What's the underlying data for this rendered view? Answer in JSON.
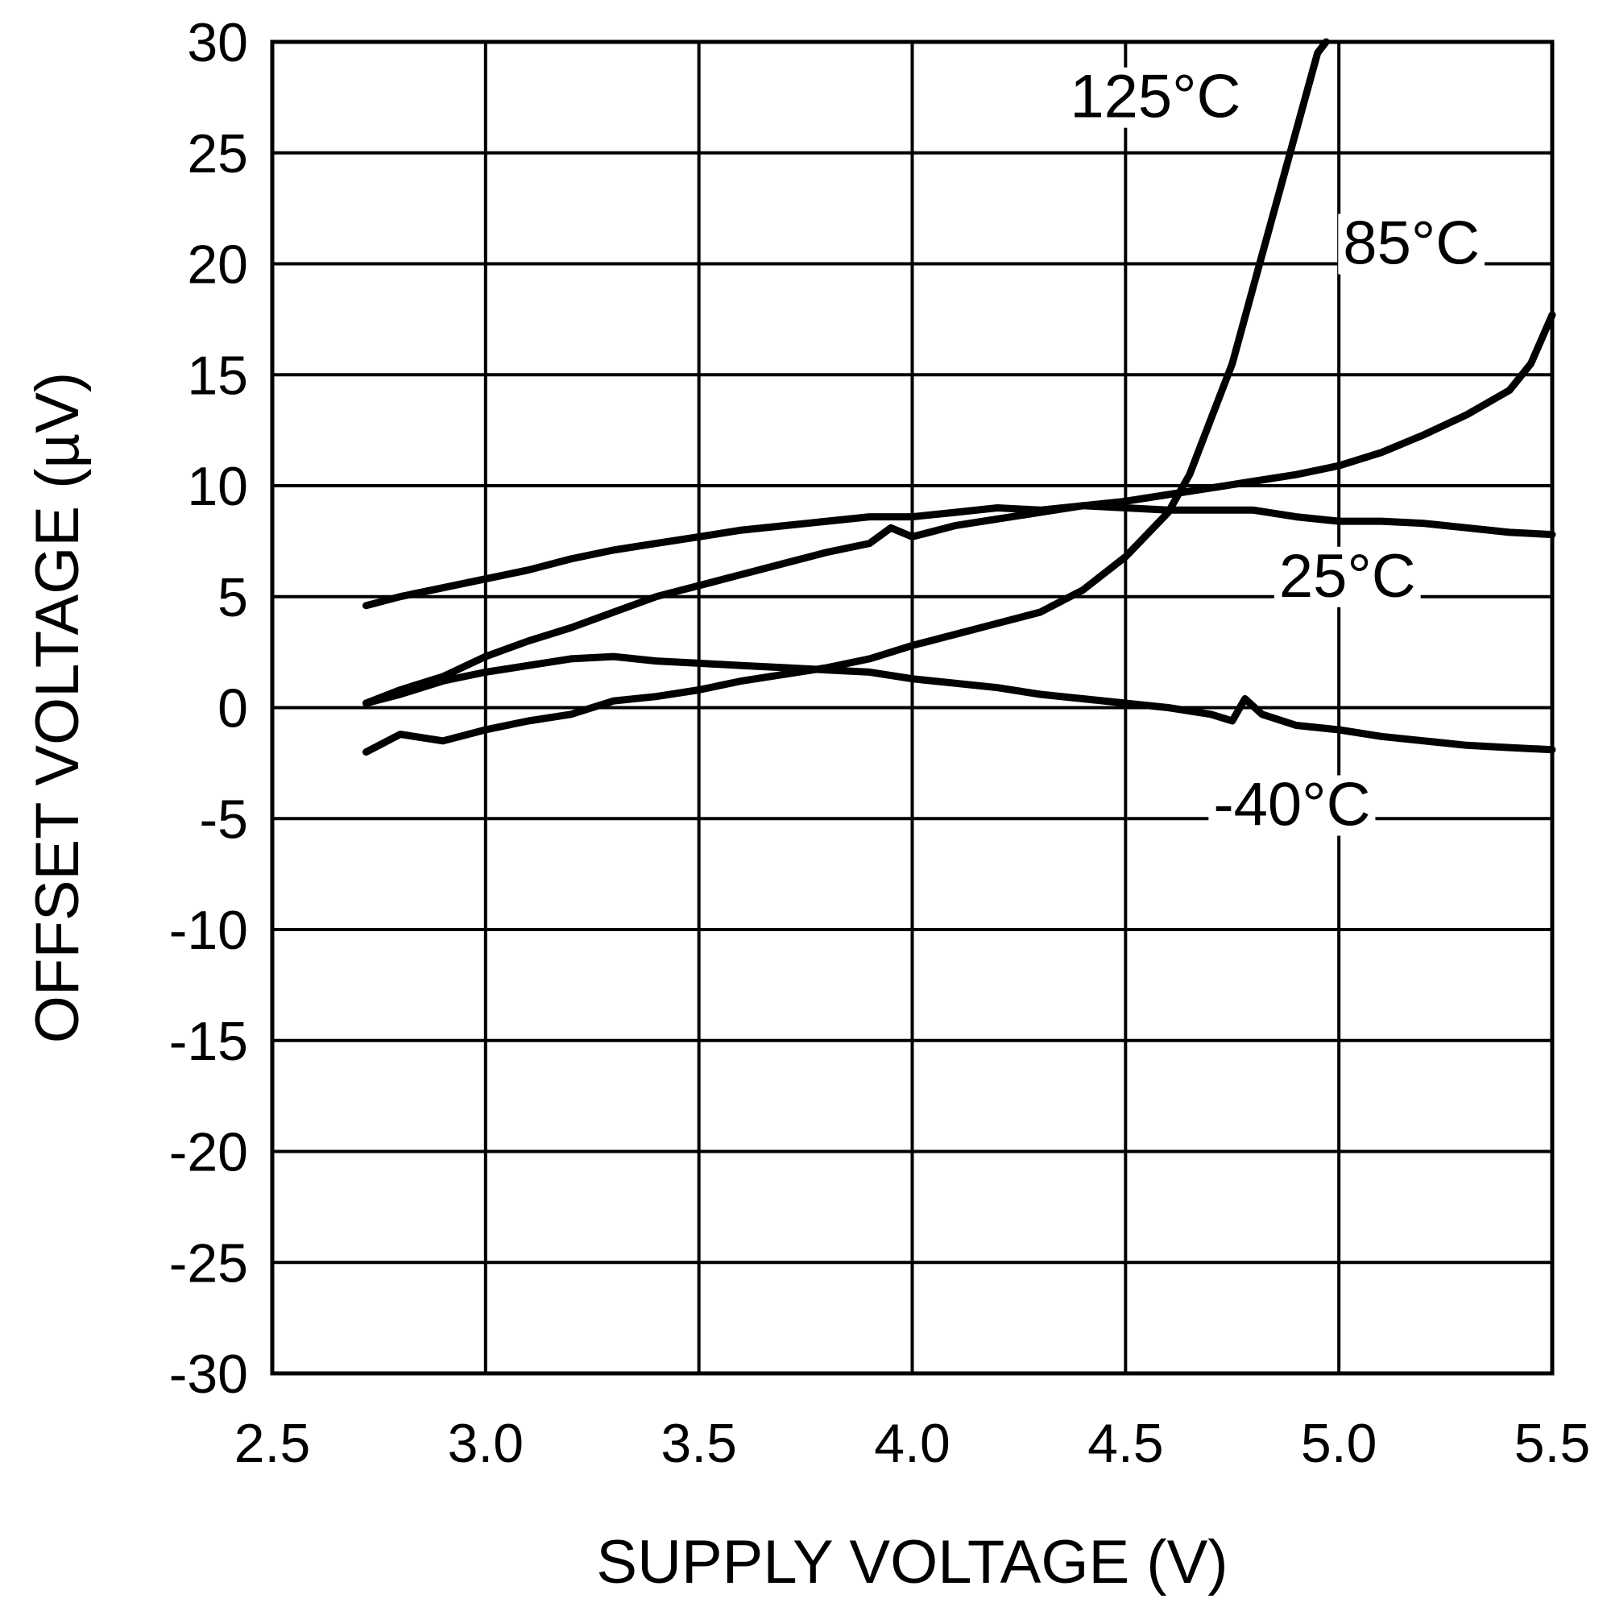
{
  "chart_data": {
    "type": "line",
    "title": "",
    "xlabel": "SUPPLY VOLTAGE (V)",
    "ylabel": "OFFSET VOLTAGE (µV)",
    "xlim": [
      2.5,
      5.5
    ],
    "ylim": [
      -30,
      30
    ],
    "xticks": [
      "2.5",
      "3.0",
      "3.5",
      "4.0",
      "4.5",
      "5.0",
      "5.5"
    ],
    "yticks": [
      "30",
      "25",
      "20",
      "15",
      "10",
      "5",
      "0",
      "-5",
      "-10",
      "-15",
      "-20",
      "-25",
      "-30"
    ],
    "grid": true,
    "legend": "none (labels placed on the curves)",
    "line_color": "#000000",
    "series": [
      {
        "name": "125°C",
        "x": [
          2.72,
          2.8,
          2.9,
          3.0,
          3.1,
          3.2,
          3.3,
          3.4,
          3.5,
          3.6,
          3.7,
          3.8,
          3.9,
          4.0,
          4.1,
          4.2,
          4.3,
          4.4,
          4.5,
          4.6,
          4.65,
          4.7,
          4.75,
          4.8,
          4.85,
          4.9,
          4.95,
          4.97
        ],
        "y": [
          -2.0,
          -1.2,
          -1.5,
          -1.0,
          -0.6,
          -0.3,
          0.3,
          0.5,
          0.8,
          1.2,
          1.5,
          1.8,
          2.2,
          2.8,
          3.3,
          3.8,
          4.3,
          5.3,
          6.8,
          8.8,
          10.5,
          13.0,
          15.5,
          19.0,
          22.5,
          26.0,
          29.5,
          30.0
        ]
      },
      {
        "name": "85°C",
        "x": [
          2.72,
          2.8,
          2.9,
          3.0,
          3.1,
          3.2,
          3.3,
          3.4,
          3.5,
          3.6,
          3.7,
          3.8,
          3.9,
          3.95,
          4.0,
          4.1,
          4.2,
          4.3,
          4.4,
          4.5,
          4.6,
          4.7,
          4.8,
          4.9,
          5.0,
          5.1,
          5.2,
          5.3,
          5.4,
          5.45,
          5.5
        ],
        "y": [
          0.2,
          0.8,
          1.4,
          2.3,
          3.0,
          3.6,
          4.3,
          5.0,
          5.5,
          6.0,
          6.5,
          7.0,
          7.4,
          8.1,
          7.7,
          8.2,
          8.5,
          8.8,
          9.1,
          9.3,
          9.6,
          9.9,
          10.2,
          10.5,
          10.9,
          11.5,
          12.3,
          13.2,
          14.3,
          15.5,
          17.7
        ]
      },
      {
        "name": "25°C",
        "x": [
          2.72,
          2.8,
          2.9,
          3.0,
          3.1,
          3.2,
          3.3,
          3.4,
          3.5,
          3.6,
          3.7,
          3.8,
          3.9,
          4.0,
          4.1,
          4.2,
          4.3,
          4.4,
          4.5,
          4.6,
          4.7,
          4.8,
          4.9,
          5.0,
          5.1,
          5.2,
          5.3,
          5.4,
          5.5
        ],
        "y": [
          4.6,
          5.0,
          5.4,
          5.8,
          6.2,
          6.7,
          7.1,
          7.4,
          7.7,
          8.0,
          8.2,
          8.4,
          8.6,
          8.6,
          8.8,
          9.0,
          8.9,
          9.1,
          9.0,
          8.9,
          8.9,
          8.9,
          8.6,
          8.4,
          8.4,
          8.3,
          8.1,
          7.9,
          7.8
        ]
      },
      {
        "name": "-40°C",
        "x": [
          2.72,
          2.8,
          2.9,
          3.0,
          3.1,
          3.2,
          3.3,
          3.4,
          3.5,
          3.6,
          3.7,
          3.8,
          3.9,
          4.0,
          4.1,
          4.2,
          4.3,
          4.4,
          4.5,
          4.6,
          4.7,
          4.75,
          4.78,
          4.82,
          4.9,
          5.0,
          5.1,
          5.2,
          5.3,
          5.4,
          5.5
        ],
        "y": [
          0.2,
          0.6,
          1.2,
          1.6,
          1.9,
          2.2,
          2.3,
          2.1,
          2.0,
          1.9,
          1.8,
          1.7,
          1.6,
          1.3,
          1.1,
          0.9,
          0.6,
          0.4,
          0.2,
          0.0,
          -0.3,
          -0.6,
          0.4,
          -0.3,
          -0.8,
          -1.0,
          -1.3,
          -1.5,
          -1.7,
          -1.8,
          -1.9
        ]
      }
    ],
    "annotations": [
      {
        "text": "125°C",
        "series": "125°C",
        "at": [
          4.57,
          26.6
        ]
      },
      {
        "text": "85°C",
        "series": "85°C",
        "at": [
          5.17,
          20.0
        ]
      },
      {
        "text": "25°C",
        "series": "25°C",
        "at": [
          5.02,
          5.0
        ]
      },
      {
        "text": "-40°C",
        "series": "-40°C",
        "at": [
          4.89,
          -5.3
        ]
      }
    ]
  }
}
